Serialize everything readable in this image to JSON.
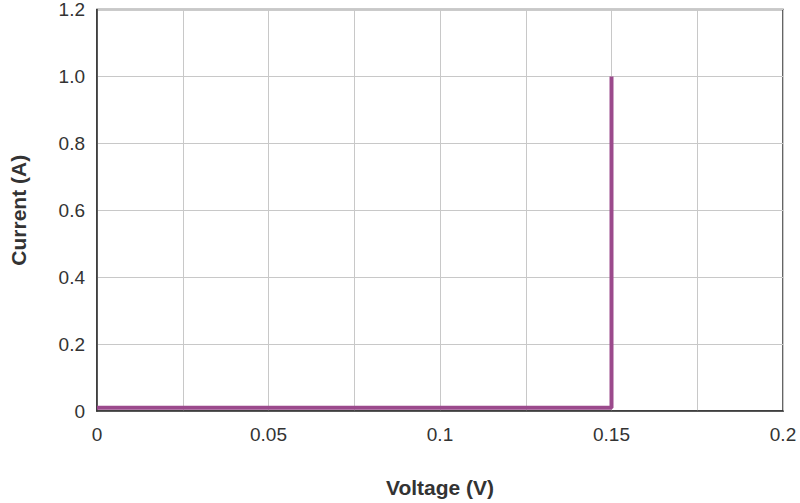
{
  "chart_data": {
    "type": "line",
    "x_label": "Voltage (V)",
    "y_label": "Current (A)",
    "series": [
      {
        "name": "Current",
        "color": "#9b4a8c",
        "x": [
          0,
          0.15,
          0.15
        ],
        "values": [
          0.01,
          0.01,
          1.0
        ]
      }
    ],
    "xlim": [
      0,
      0.2
    ],
    "xticks": [
      0,
      0.05,
      0.1,
      0.15,
      0.2
    ],
    "ylim": [
      0,
      1.2
    ],
    "yticks": [
      0,
      0.2,
      0.4,
      0.6,
      0.8,
      {
        "value": 1,
        "label": "1.0"
      },
      1.2
    ],
    "grid": true
  }
}
